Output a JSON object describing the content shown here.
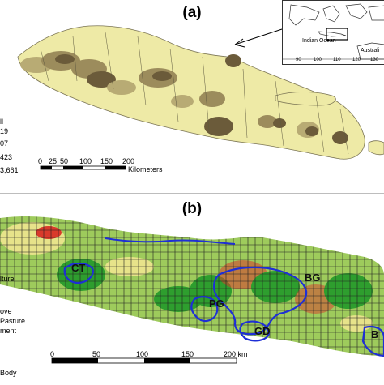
{
  "panel_a": {
    "label": "(a)",
    "legend_items": [
      "ll",
      "19",
      "07",
      "423",
      "3,661"
    ],
    "scale_ticks": [
      "0",
      "25",
      "50",
      "100",
      "150",
      "200"
    ],
    "scale_unit": "Kilometers",
    "inset": {
      "ocean_label": "Indian Ocean",
      "region_label": "Australi",
      "lon_ticks": [
        "90",
        "100",
        "110",
        "120",
        "130"
      ]
    },
    "colors": {
      "land": "#eeeaa6",
      "relief": "#6b5b3a",
      "relief_light": "#b8ab74"
    }
  },
  "panel_b": {
    "label": "(b)",
    "legend_items": [
      "lture",
      "ove",
      "Pasture",
      "ment",
      "Body"
    ],
    "sites": [
      "CT",
      "PG",
      "GD",
      "BG",
      "B"
    ],
    "scale_ticks": [
      "0",
      "50",
      "100",
      "150",
      "200 km"
    ],
    "colors": {
      "grid": "#222222",
      "forest": "#2e9e2e",
      "crop": "#9ecb5c",
      "urban": "#d93a2b",
      "boundary": "#1e2fd6",
      "water": "#1e2fd6",
      "bare": "#e7e38a"
    }
  }
}
